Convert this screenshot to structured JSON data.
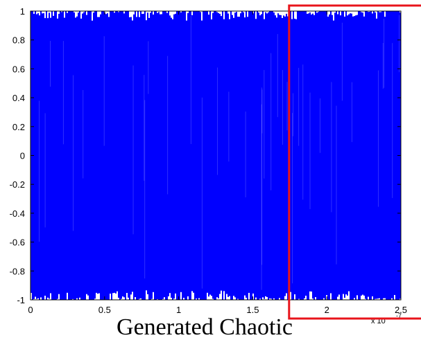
{
  "chart_data": {
    "type": "line",
    "title": "",
    "xlabel": "",
    "ylabel": "",
    "xlim": [
      0,
      2.5
    ],
    "ylim": [
      -1,
      1
    ],
    "x_ticks": [
      "0",
      "0.5",
      "1",
      "1.5",
      "2",
      "2.5"
    ],
    "y_ticks": [
      "1",
      "0.8",
      "0.6",
      "0.4",
      "0.2",
      "0",
      "-0.2",
      "-0.4",
      "-0.6",
      "-0.8",
      "-1"
    ],
    "x_exponent_base": "x 10",
    "x_exponent_power": "-7",
    "grid": false,
    "series": [
      {
        "color": "#0000ff",
        "min": -1,
        "max": 1,
        "x_range": [
          0,
          2.5
        ]
      }
    ],
    "highlight_box": {
      "x_from": 1.75,
      "color": "#e8141b"
    }
  },
  "caption": "Generated Chaotic"
}
